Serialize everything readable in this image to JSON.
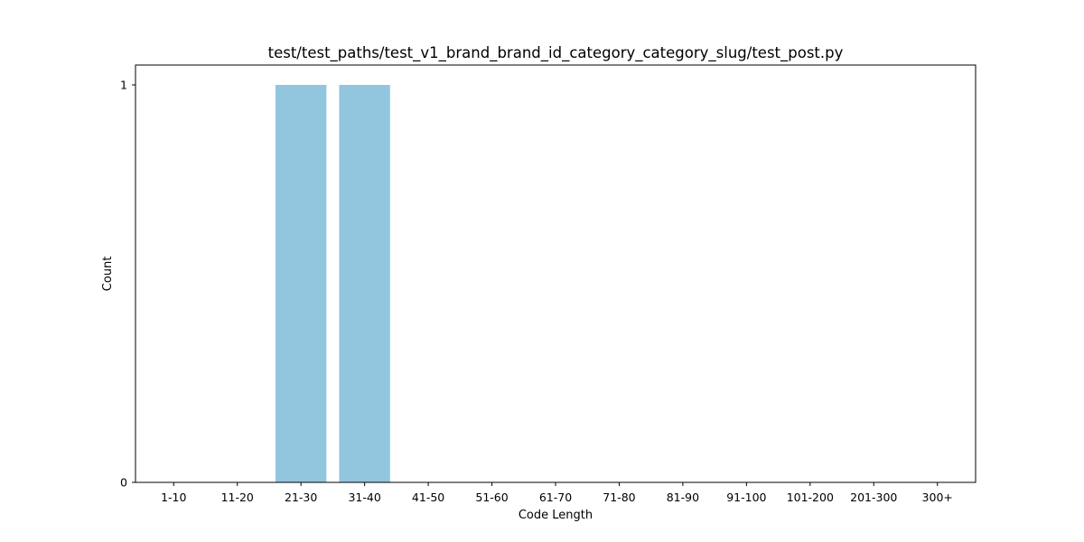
{
  "chart_data": {
    "type": "bar",
    "title": "test/test_paths/test_v1_brand_brand_id_category_category_slug/test_post.py",
    "xlabel": "Code Length",
    "ylabel": "Count",
    "categories": [
      "1-10",
      "11-20",
      "21-30",
      "31-40",
      "41-50",
      "51-60",
      "61-70",
      "71-80",
      "81-90",
      "91-100",
      "101-200",
      "201-300",
      "300+"
    ],
    "values": [
      0,
      0,
      1,
      1,
      0,
      0,
      0,
      0,
      0,
      0,
      0,
      0,
      0
    ],
    "ylim": [
      0,
      1.05
    ],
    "yticks": [
      0,
      1
    ],
    "bar_color": "#92c5de",
    "grid": false,
    "legend": "none"
  }
}
